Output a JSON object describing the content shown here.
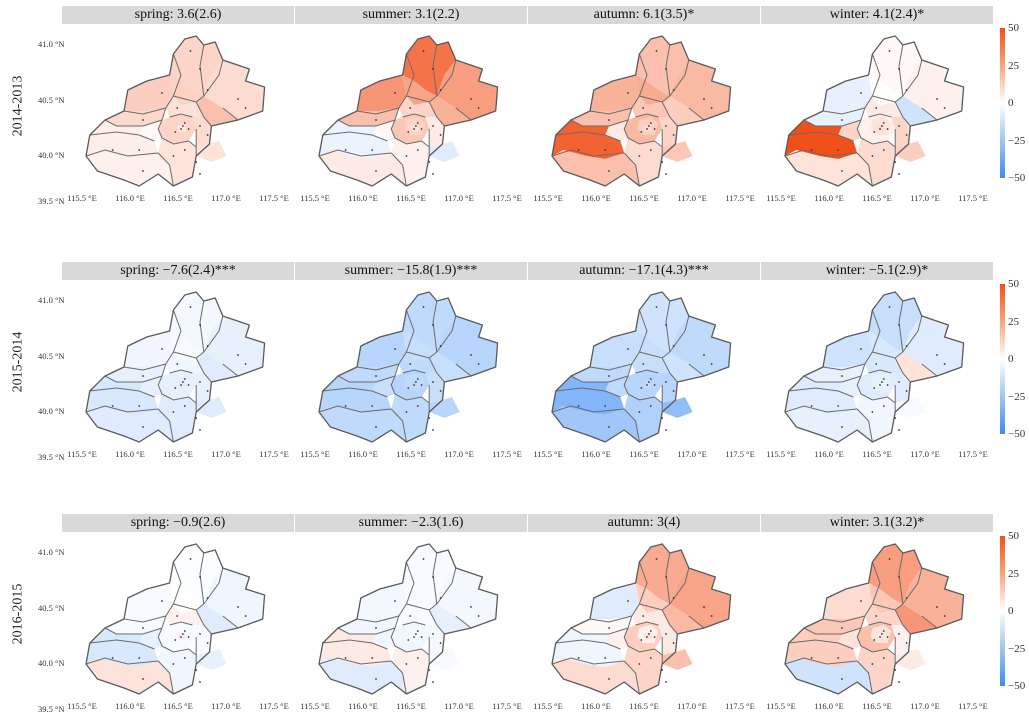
{
  "axes": {
    "lat_ticks": [
      "41.0 °N",
      "40.5 °N",
      "40.0 °N",
      "39.5 °N"
    ],
    "lon_ticks": [
      "115.5 °E",
      "116.0 °E",
      "116.5 °E",
      "117.0 °E",
      "117.5 °E"
    ]
  },
  "legend": {
    "labels": [
      "50",
      "25",
      "0",
      "−25",
      "−50"
    ],
    "high_color": "#f2501a",
    "zero_color": "#ffffff",
    "low_color": "#3b8bf5"
  },
  "rows": [
    {
      "label": "2014-2013",
      "panels": [
        {
          "title": "spring: 3.6(2.6)",
          "region_values": [
            14,
            12,
            13,
            10,
            11,
            18,
            9,
            12,
            12,
            6,
            10,
            8,
            2,
            5,
            4,
            8
          ]
        },
        {
          "title": "summer: 3.1(2.2)",
          "region_values": [
            30,
            40,
            26,
            28,
            18,
            22,
            12,
            16,
            12,
            8,
            6,
            4,
            2,
            -5,
            6,
            -8
          ]
        },
        {
          "title": "autumn: 6.1(3.5)*",
          "region_values": [
            22,
            18,
            24,
            20,
            18,
            14,
            16,
            20,
            14,
            10,
            12,
            10,
            6,
            45,
            18,
            16
          ]
        },
        {
          "title": "winter: 4.1(2.4)*",
          "region_values": [
            -6,
            2,
            0,
            4,
            -6,
            -12,
            6,
            4,
            8,
            10,
            12,
            10,
            12,
            50,
            8,
            14
          ]
        }
      ]
    },
    {
      "label": "2015-2014",
      "panels": [
        {
          "title": "spring: −7.6(2.4)***",
          "region_values": [
            -4,
            -3,
            -2,
            -6,
            -6,
            -8,
            -4,
            -6,
            -6,
            -8,
            -6,
            -8,
            -6,
            -10,
            -8,
            -8
          ]
        },
        {
          "title": "summer: −15.8(1.9)***",
          "region_values": [
            -18,
            -16,
            -14,
            -18,
            -16,
            -14,
            -16,
            -18,
            -16,
            -16,
            -14,
            -16,
            -14,
            -18,
            -16,
            -18
          ]
        },
        {
          "title": "autumn: −17.1(4.3)***",
          "region_values": [
            -14,
            -12,
            -14,
            -16,
            -16,
            -12,
            -14,
            -18,
            -18,
            -16,
            -18,
            -20,
            -16,
            -32,
            -24,
            -28
          ]
        },
        {
          "title": "winter: −5.1(2.9)*",
          "region_values": [
            -12,
            -14,
            -10,
            -8,
            -6,
            8,
            -10,
            -8,
            -6,
            -6,
            -8,
            -4,
            -6,
            -8,
            -6,
            -2
          ]
        }
      ]
    },
    {
      "label": "2016-2015",
      "panels": [
        {
          "title": "spring: −0.9(2.6)",
          "region_values": [
            -2,
            -1,
            0,
            -4,
            -2,
            -8,
            4,
            -2,
            -2,
            6,
            -2,
            -4,
            -6,
            -10,
            8,
            -6
          ]
        },
        {
          "title": "summer: −2.3(1.6)",
          "region_values": [
            -3,
            -2,
            -2,
            -3,
            -4,
            -6,
            -2,
            -4,
            -3,
            -2,
            -3,
            4,
            -4,
            6,
            -8,
            -2
          ]
        },
        {
          "title": "autumn: 3(4)",
          "region_values": [
            -8,
            24,
            14,
            26,
            2,
            20,
            6,
            14,
            4,
            8,
            6,
            12,
            4,
            -4,
            10,
            18
          ]
        },
        {
          "title": "winter: 3.1(3.2)*",
          "region_values": [
            10,
            28,
            16,
            22,
            16,
            30,
            12,
            18,
            8,
            6,
            4,
            12,
            8,
            14,
            -12,
            6
          ]
        }
      ]
    }
  ]
}
